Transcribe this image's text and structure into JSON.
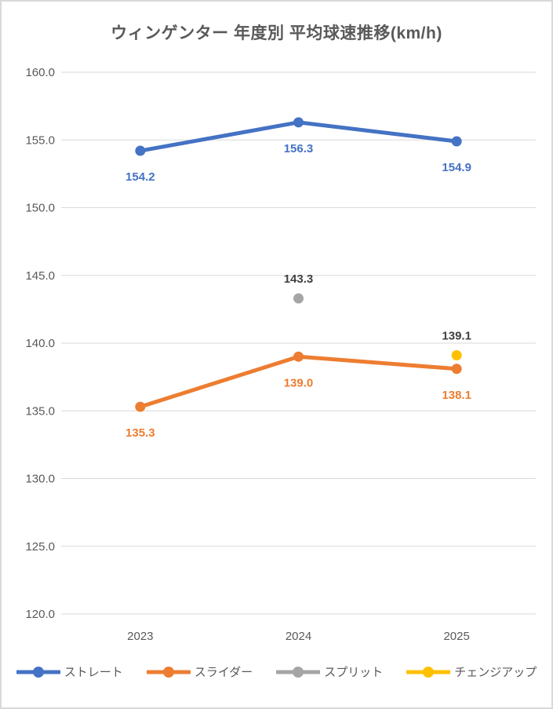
{
  "window": {
    "background": "#ffffff",
    "border_color": "#d9d9d9"
  },
  "chart_data": {
    "type": "line",
    "title": "ウィンゲンター 年度別 平均球速推移(km/h)",
    "categories": [
      "2023",
      "2024",
      "2025"
    ],
    "series": [
      {
        "id": "straight",
        "name": "ストレート",
        "color": "#4472C4",
        "label_color": "#4472C4",
        "label_position": "below",
        "values": [
          154.2,
          156.3,
          154.9
        ]
      },
      {
        "id": "slider",
        "name": "スライダー",
        "color": "#ED7D31",
        "label_color": "#ED7D31",
        "label_position": "below",
        "values": [
          135.3,
          139.0,
          138.1
        ]
      },
      {
        "id": "split",
        "name": "スプリット",
        "color": "#A5A5A5",
        "label_color": "#404040",
        "label_position": "above",
        "values": [
          null,
          143.3,
          null
        ]
      },
      {
        "id": "changeup",
        "name": "チェンジアップ",
        "color": "#FFC000",
        "label_color": "#404040",
        "label_position": "above",
        "values": [
          null,
          null,
          139.1
        ]
      }
    ],
    "ylim": [
      120.0,
      160.0
    ],
    "ytick_step": 5.0,
    "ytick_labels": [
      "160.0",
      "155.0",
      "150.0",
      "145.0",
      "140.0",
      "135.0",
      "130.0",
      "125.0",
      "120.0"
    ],
    "data_label_decimals": 1,
    "grid": true,
    "grid_color": "#d9d9d9",
    "axis_text_color": "#595959",
    "legend_text_color": "#595959",
    "legend_position": "bottom"
  }
}
